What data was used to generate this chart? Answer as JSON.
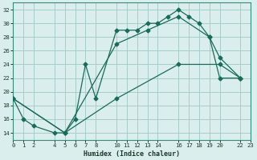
{
  "xlabel": "Humidex (Indice chaleur)",
  "bg_color": "#daeeed",
  "grid_color": "#a8ccca",
  "line_color": "#1a6b5a",
  "xlim": [
    0,
    23
  ],
  "ylim": [
    13,
    33
  ],
  "xticks": [
    0,
    1,
    2,
    4,
    5,
    6,
    7,
    8,
    10,
    11,
    12,
    13,
    14,
    16,
    17,
    18,
    19,
    20,
    22,
    23
  ],
  "yticks": [
    14,
    16,
    18,
    20,
    22,
    24,
    26,
    28,
    30,
    32
  ],
  "line1_x": [
    0,
    1,
    2,
    4,
    5,
    6,
    7,
    8,
    10,
    11,
    12,
    13,
    14,
    15,
    16,
    17,
    18,
    19,
    20,
    22
  ],
  "line1_y": [
    19,
    16,
    15,
    14,
    14,
    16,
    24,
    19,
    29,
    29,
    29,
    30,
    30,
    31,
    32,
    31,
    30,
    28,
    22,
    22
  ],
  "line2_x": [
    0,
    5,
    10,
    13,
    16,
    19,
    20,
    22
  ],
  "line2_y": [
    19,
    14,
    27,
    29,
    31,
    28,
    25,
    22
  ],
  "line3_x": [
    0,
    5,
    10,
    16,
    20,
    22
  ],
  "line3_y": [
    19,
    14,
    19,
    24,
    24,
    22
  ]
}
